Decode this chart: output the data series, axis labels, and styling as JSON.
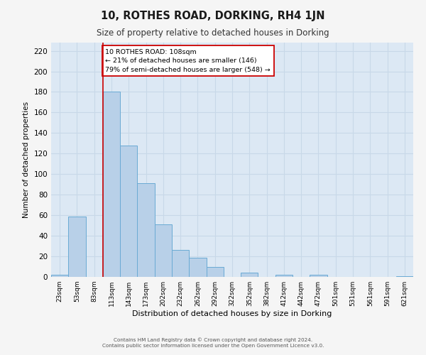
{
  "title": "10, ROTHES ROAD, DORKING, RH4 1JN",
  "subtitle": "Size of property relative to detached houses in Dorking",
  "xlabel": "Distribution of detached houses by size in Dorking",
  "ylabel": "Number of detached properties",
  "bar_labels": [
    "23sqm",
    "53sqm",
    "83sqm",
    "113sqm",
    "143sqm",
    "173sqm",
    "202sqm",
    "232sqm",
    "262sqm",
    "292sqm",
    "322sqm",
    "352sqm",
    "382sqm",
    "412sqm",
    "442sqm",
    "472sqm",
    "501sqm",
    "531sqm",
    "561sqm",
    "591sqm",
    "621sqm"
  ],
  "bar_values": [
    2,
    59,
    0,
    180,
    128,
    91,
    51,
    26,
    19,
    10,
    0,
    4,
    0,
    2,
    0,
    2,
    0,
    0,
    0,
    0,
    1
  ],
  "bar_color": "#b8d0e8",
  "bar_edge_color": "#6aaad4",
  "vline_color": "#cc0000",
  "annotation_text": "10 ROTHES ROAD: 108sqm\n← 21% of detached houses are smaller (146)\n79% of semi-detached houses are larger (548) →",
  "annotation_box_color": "#ffffff",
  "annotation_box_edge": "#cc0000",
  "ylim": [
    0,
    228
  ],
  "yticks": [
    0,
    20,
    40,
    60,
    80,
    100,
    120,
    140,
    160,
    180,
    200,
    220
  ],
  "grid_color": "#c8d8e8",
  "bg_color": "#dce8f4",
  "fig_bg_color": "#f5f5f5",
  "footer1": "Contains HM Land Registry data © Crown copyright and database right 2024.",
  "footer2": "Contains public sector information licensed under the Open Government Licence v3.0."
}
